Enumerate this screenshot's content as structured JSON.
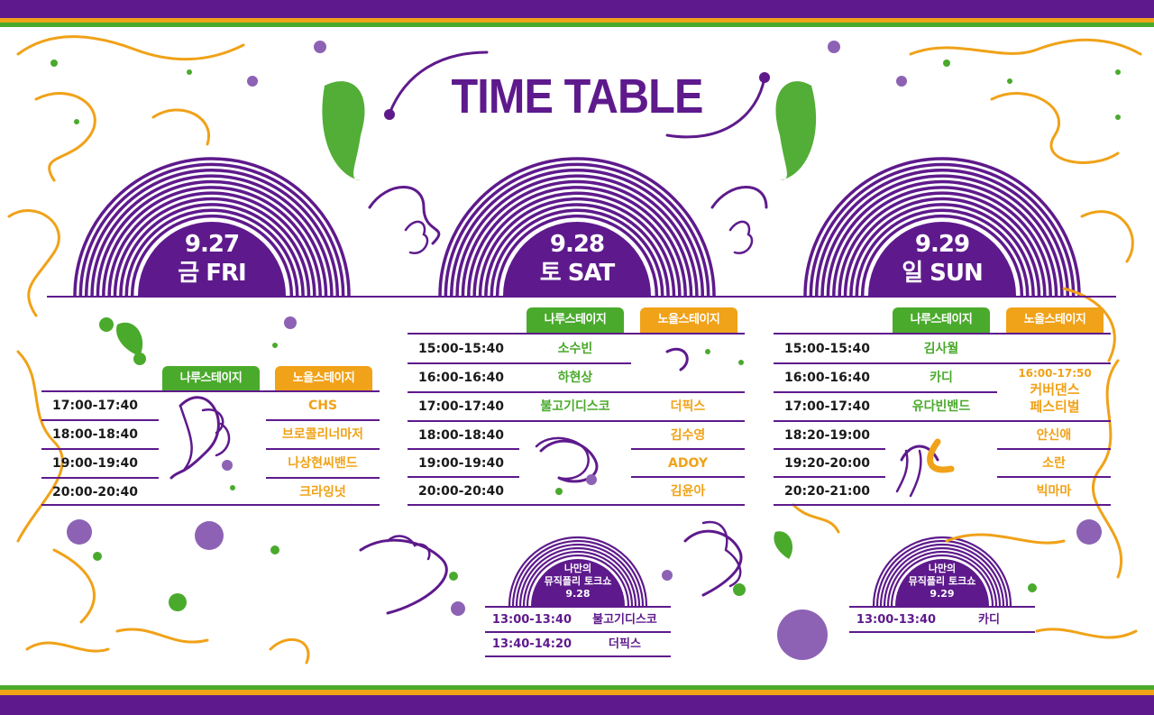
{
  "title": "TIME TABLE",
  "colors": {
    "purple": "#5e1a8c",
    "green": "#4aaa2c",
    "orange": "#f0a218",
    "light_purple": "#8d62b5"
  },
  "stages": {
    "naru": "나루스테이지",
    "noeul": "노을스테이지"
  },
  "days": [
    {
      "date": "9.27",
      "weekday": "금 FRI",
      "schedule": [
        {
          "time": "17:00-17:40",
          "naru": "",
          "noeul": "CHS"
        },
        {
          "time": "18:00-18:40",
          "naru": "",
          "noeul": "브로콜리너마저"
        },
        {
          "time": "19:00-19:40",
          "naru": "",
          "noeul": "나상현씨밴드"
        },
        {
          "time": "20:00-20:40",
          "naru": "",
          "noeul": "크라잉넛"
        }
      ]
    },
    {
      "date": "9.28",
      "weekday": "토 SAT",
      "schedule": [
        {
          "time": "15:00-15:40",
          "naru": "소수빈",
          "noeul": ""
        },
        {
          "time": "16:00-16:40",
          "naru": "하현상",
          "noeul": ""
        },
        {
          "time": "17:00-17:40",
          "naru": "불고기디스코",
          "noeul": "더픽스"
        },
        {
          "time": "18:00-18:40",
          "naru": "",
          "noeul": "김수영"
        },
        {
          "time": "19:00-19:40",
          "naru": "",
          "noeul": "ADOY"
        },
        {
          "time": "20:00-20:40",
          "naru": "",
          "noeul": "김윤아"
        }
      ]
    },
    {
      "date": "9.29",
      "weekday": "일 SUN",
      "schedule": [
        {
          "time": "15:00-15:40",
          "naru": "김사월",
          "noeul": ""
        },
        {
          "time": "16:00-16:40",
          "naru": "카디",
          "noeul": ""
        },
        {
          "time": "17:00-17:40",
          "naru": "유다빈밴드",
          "noeul": ""
        },
        {
          "time": "18:20-19:00",
          "naru": "",
          "noeul": "안신애"
        },
        {
          "time": "19:20-20:00",
          "naru": "",
          "noeul": "소란"
        },
        {
          "time": "20:20-21:00",
          "naru": "",
          "noeul": "빅마마"
        }
      ],
      "special": {
        "time": "16:00-17:50",
        "name_line1": "커버댄스",
        "name_line2": "페스티벌"
      }
    }
  ],
  "talkshows": [
    {
      "title_line1": "나만의",
      "title_line2": "뮤직플리 토크쇼",
      "date": "9.28",
      "rows": [
        {
          "time": "13:00-13:40",
          "name": "불고기디스코"
        },
        {
          "time": "13:40-14:20",
          "name": "더픽스"
        }
      ]
    },
    {
      "title_line1": "나만의",
      "title_line2": "뮤직플리 토크쇼",
      "date": "9.29",
      "rows": [
        {
          "time": "13:00-13:40",
          "name": "카디"
        }
      ]
    }
  ]
}
